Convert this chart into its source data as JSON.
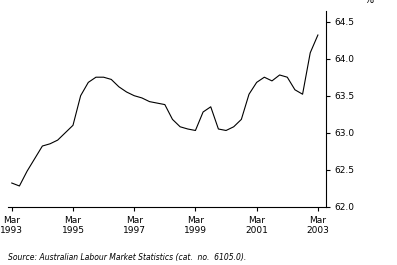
{
  "source_text": "Source: Australian Labour Market Statistics (cat.  no.  6105.0).",
  "ylabel": "%",
  "ylim": [
    62.0,
    64.65
  ],
  "yticks": [
    62.0,
    62.5,
    63.0,
    63.5,
    64.0,
    64.5
  ],
  "ytick_labels": [
    "62.0",
    "62.5",
    "63.0",
    "63.5",
    "64.0",
    "64.5"
  ],
  "xtick_labels": [
    "Mar\n1993",
    "Mar\n1995",
    "Mar\n1997",
    "Mar\n1999",
    "Mar\n2001",
    "Mar\n2003"
  ],
  "xtick_positions": [
    0,
    8,
    16,
    24,
    32,
    40
  ],
  "xlim": [
    -0.5,
    41
  ],
  "line_color": "#000000",
  "line_width": 0.8,
  "background_color": "#ffffff",
  "x": [
    0,
    1,
    2,
    3,
    4,
    5,
    6,
    7,
    8,
    9,
    10,
    11,
    12,
    13,
    14,
    15,
    16,
    17,
    18,
    19,
    20,
    21,
    22,
    23,
    24,
    25,
    26,
    27,
    28,
    29,
    30,
    31,
    32,
    33,
    34,
    35,
    36,
    37,
    38,
    39,
    40
  ],
  "y": [
    62.32,
    62.28,
    62.48,
    62.65,
    62.82,
    62.85,
    62.9,
    63.0,
    63.1,
    63.5,
    63.68,
    63.75,
    63.75,
    63.72,
    63.62,
    63.55,
    63.5,
    63.47,
    63.42,
    63.4,
    63.38,
    63.18,
    63.08,
    63.05,
    63.03,
    63.28,
    63.35,
    63.05,
    63.03,
    63.08,
    63.18,
    63.52,
    63.68,
    63.75,
    63.7,
    63.78,
    63.75,
    63.58,
    63.52,
    64.08,
    64.32
  ]
}
